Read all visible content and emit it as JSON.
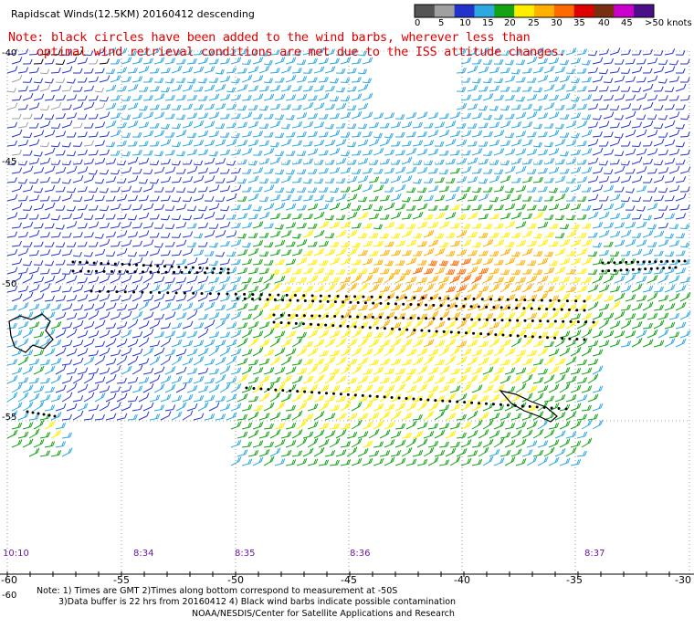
{
  "title": "Rapidscat Winds(12.5KM) 20160412 descending",
  "note_line1": "Note: black circles have been added to the wind barbs, wherever less than",
  "note_line2": "optimal wind retrieval conditions are met due to the ISS attitude changes.",
  "legend": {
    "labels": [
      "0",
      "5",
      "10",
      "15",
      "20",
      "25",
      "30",
      "35",
      "40",
      "45",
      ">50 knots"
    ],
    "colors": [
      "#555555",
      "#a0a0a0",
      "#2233cc",
      "#2ea8e0",
      "#13a313",
      "#ffee00",
      "#ffb000",
      "#ff6a00",
      "#dd0000",
      "#7a2e10",
      "#cc00cc",
      "#4a1088"
    ]
  },
  "axis": {
    "lon_labels": [
      "-60",
      "-55",
      "-50",
      "-45",
      "-40",
      "-35",
      "-30"
    ],
    "lat_labels": [
      "-40",
      "-45",
      "-50",
      "-55",
      "-60"
    ],
    "time_labels": [
      "10:10",
      "8:34",
      "8:35",
      "8:36",
      "8:37"
    ]
  },
  "footnotes": {
    "line1": "Note: 1) Times are GMT 2)Times along bottom correspond to measurement at -50S",
    "line2": "3)Data buffer is 22 hrs from 20160412 4) Black wind barbs indicate possible contamination",
    "line3": "NOAA/NESDIS/Center for Satellite Applications and Research"
  }
}
